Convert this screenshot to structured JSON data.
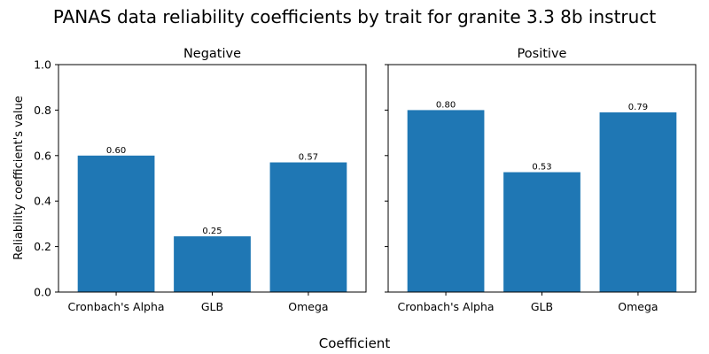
{
  "chart_data": {
    "type": "bar",
    "title": "PANAS data reliability coefficients by trait for granite 3.3 8b instruct",
    "xlabel": "Coefficient",
    "ylabel": "Reliability coefficient's value",
    "ylim": [
      0,
      1.0
    ],
    "yticks": [
      "0.0",
      "0.2",
      "0.4",
      "0.6",
      "0.8",
      "1.0"
    ],
    "bar_color": "#1f77b4",
    "categories": [
      "Cronbach's Alpha",
      "GLB",
      "Omega"
    ],
    "panels": [
      {
        "title": "Negative",
        "values": [
          0.6,
          0.245,
          0.57
        ],
        "labels": [
          "0.60",
          "0.25",
          "0.57"
        ]
      },
      {
        "title": "Positive",
        "values": [
          0.8,
          0.527,
          0.79
        ],
        "labels": [
          "0.80",
          "0.53",
          "0.79"
        ]
      }
    ]
  }
}
